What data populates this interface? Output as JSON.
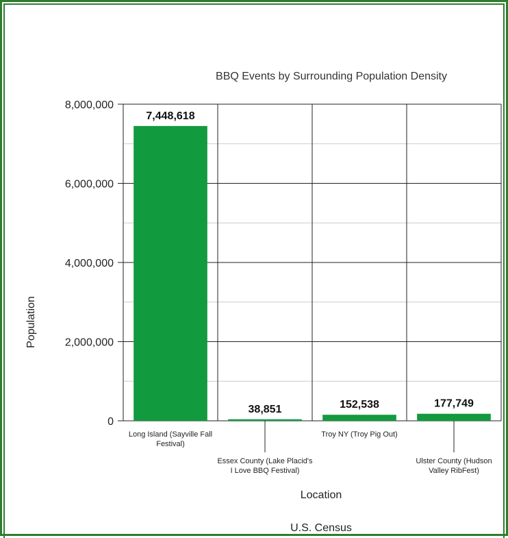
{
  "chart_data": {
    "type": "bar",
    "title": "BBQ Events by Surrounding Population Density",
    "xlabel": "Location",
    "ylabel": "Population",
    "source": "U.S. Census",
    "ylim": [
      0,
      8000000
    ],
    "yticks": [
      "0",
      "2,000,000",
      "4,000,000",
      "6,000,000",
      "8,000,000"
    ],
    "ytick_values": [
      0,
      2000000,
      4000000,
      6000000,
      8000000
    ],
    "grid": true,
    "bar_color": "#129a3e",
    "categories": [
      [
        "Long Island (Sayville Fall",
        "Festival)"
      ],
      [
        "Essex County (Lake Placid's",
        "I Love BBQ Festival)"
      ],
      [
        "Troy NY (Troy Pig Out)"
      ],
      [
        "Ulster County (Hudson",
        "Valley RibFest)"
      ]
    ],
    "values": [
      7448618,
      38851,
      152538,
      177749
    ],
    "value_labels": [
      "7,448,618",
      "38,851",
      "152,538",
      "177,749"
    ]
  },
  "colors": {
    "frame": "#2d7d2d",
    "bar": "#129a3e"
  }
}
